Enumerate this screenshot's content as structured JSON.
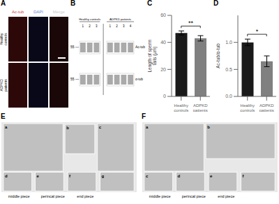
{
  "chart_data": [
    {
      "type": "image_grid",
      "title": "A",
      "categories": [
        "Ac-tub",
        "DAPI",
        "Merge"
      ],
      "colors": [
        "#cc4444",
        "#6688cc",
        "#cccccc"
      ],
      "rows": [
        "Healthy\ncontrols",
        "ADPKD\npatients"
      ],
      "cells": [
        [
          "#2d0808",
          "#080818",
          "#1a0808"
        ],
        [
          "#2d0808",
          "#080818",
          "#1a0808"
        ]
      ]
    },
    {
      "type": "blot",
      "title": "B",
      "color": "#aaaaaa",
      "groups": [
        {
          "name": "Healthy controls",
          "lanes": [
            1,
            2,
            3
          ]
        },
        {
          "name": "ADPKD patients",
          "lanes": [
            1,
            2,
            3,
            4
          ]
        }
      ],
      "bands": [
        {
          "name": "Ac-tub",
          "ladder": "55 —"
        },
        {
          "name": "α-tub",
          "ladder": "55 —"
        }
      ]
    },
    {
      "type": "bar",
      "title": "C",
      "ylabel": "Length of sperm\ntails (μm)",
      "categories": [
        "Healthy\ncontrols",
        "ADPKD\npatients"
      ],
      "values": [
        47.0,
        43.0
      ],
      "errors": [
        1.5,
        2.0
      ],
      "colors": [
        "#1a1a1a",
        "#808080"
      ],
      "ylim": [
        0,
        60
      ],
      "yticks": [
        0,
        20,
        40,
        60
      ],
      "significance": "**"
    },
    {
      "type": "bar",
      "title": "D",
      "ylabel": "Ac-tub/α-tub",
      "categories": [
        "Healthy\ncontrols",
        "ADPKD\npatients"
      ],
      "values": [
        1.0,
        0.65
      ],
      "errors": [
        0.06,
        0.1
      ],
      "colors": [
        "#1a1a1a",
        "#808080"
      ],
      "ylim": [
        0.0,
        1.5
      ],
      "yticks": [
        {
          "value": 0.0,
          "label": "0.0"
        },
        {
          "value": 0.5,
          "label": "0.5"
        },
        {
          "value": 1.0,
          "label": "1.0"
        }
      ],
      "significance": "*"
    },
    {
      "type": "em",
      "title": "E",
      "color": "#c0c0c0",
      "subpanels": [
        "a",
        "b",
        "c",
        "d",
        "e",
        "f",
        "g"
      ],
      "categories": [
        "middle piece",
        "perincal piece",
        "end piece"
      ]
    },
    {
      "type": "em",
      "title": "F",
      "color": "#c0c0c0",
      "subpanels": [
        "a",
        "b",
        "c",
        "d",
        "e",
        "f"
      ],
      "categories": [
        "middle piece",
        "perincal piece",
        "end piece"
      ]
    }
  ]
}
